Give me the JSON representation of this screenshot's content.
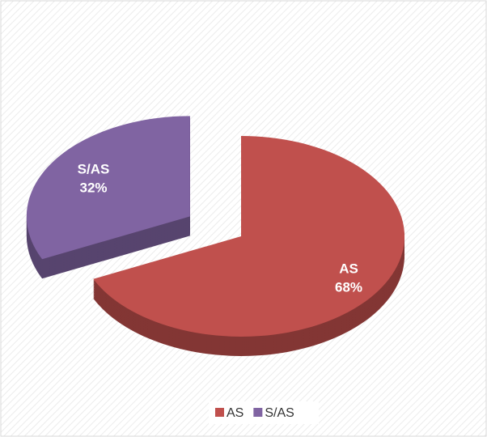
{
  "chart_data": {
    "type": "pie",
    "categories": [
      "AS",
      "S/AS"
    ],
    "values": [
      68,
      32
    ],
    "value_labels": [
      "68%",
      "32%"
    ],
    "colors": [
      "#c0504d",
      "#8064a2"
    ],
    "legend": "bottom"
  }
}
